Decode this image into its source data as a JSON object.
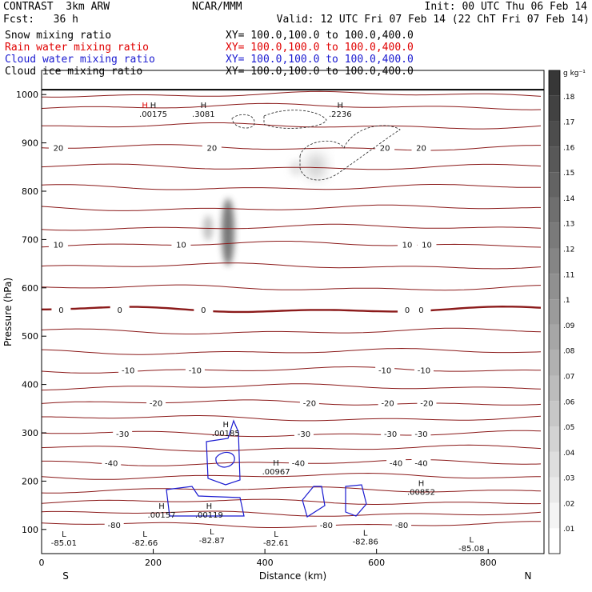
{
  "header": {
    "left_line1": "CONTRAST  3km ARW",
    "left_line2": "Fcst:   36 h",
    "center_line1": "NCAR/MMM",
    "right_line1": "Init: 00 UTC Thu 06 Feb 14",
    "right_line2": "Valid: 12 UTC Fri 07 Feb 14 (22 ChT Fri 07 Feb 14)"
  },
  "fields": [
    {
      "name": "Snow mixing ratio",
      "xy": "XY= 100.0,100.0 to 100.0,400.0",
      "color": "#000000"
    },
    {
      "name": "Rain water mixing ratio",
      "xy": "XY= 100.0,100.0 to 100.0,400.0",
      "color": "#e00000"
    },
    {
      "name": "Cloud water mixing ratio",
      "xy": "XY= 100.0,100.0 to 100.0,400.0",
      "color": "#1a1ad0"
    },
    {
      "name": "Cloud ice mixing ratio",
      "xy": "XY= 100.0,100.0 to 100.0,400.0",
      "color": "#000000"
    }
  ],
  "chart_data": {
    "type": "contour",
    "xlabel": "Distance (km)",
    "ylabel": "Pressure (hPa)",
    "xlim": [
      0,
      900
    ],
    "ylim": [
      1050,
      50
    ],
    "x_ticks": [
      0,
      200,
      400,
      600,
      800
    ],
    "y_ticks": [
      100,
      200,
      300,
      400,
      500,
      600,
      700,
      800,
      900,
      1000
    ],
    "x_end_labels": {
      "left": "S",
      "right": "N"
    },
    "colorbar": {
      "unit": "g kg⁻¹",
      "ticks": [
        ".01",
        ".02",
        ".03",
        ".04",
        ".05",
        ".06",
        ".07",
        ".08",
        ".09",
        ".1",
        ".11",
        ".12",
        ".13",
        ".14",
        ".15",
        ".16",
        ".17",
        ".18"
      ],
      "min": 0,
      "max": 0.19
    },
    "temperature_contours": [
      {
        "p": 1000,
        "labels": []
      },
      {
        "p": 975,
        "labels": []
      },
      {
        "p": 935,
        "labels": []
      },
      {
        "p": 890,
        "labels": [
          {
            "x": 30,
            "t": "20"
          },
          {
            "x": 305,
            "t": "20"
          },
          {
            "x": 615,
            "t": "20"
          },
          {
            "x": 680,
            "t": "20"
          }
        ]
      },
      {
        "p": 850,
        "labels": []
      },
      {
        "p": 808,
        "labels": []
      },
      {
        "p": 765,
        "labels": []
      },
      {
        "p": 725,
        "labels": []
      },
      {
        "p": 690,
        "labels": [
          {
            "x": 30,
            "t": "10"
          },
          {
            "x": 250,
            "t": "10"
          },
          {
            "x": 655,
            "t": "10"
          },
          {
            "x": 690,
            "t": "10"
          }
        ]
      },
      {
        "p": 645,
        "labels": []
      },
      {
        "p": 600,
        "labels": []
      },
      {
        "p": 555,
        "bold": true,
        "labels": [
          {
            "x": 35,
            "t": "0"
          },
          {
            "x": 140,
            "t": "0"
          },
          {
            "x": 290,
            "t": "0"
          },
          {
            "x": 655,
            "t": "0"
          },
          {
            "x": 680,
            "t": "0"
          }
        ]
      },
      {
        "p": 510,
        "labels": []
      },
      {
        "p": 468,
        "labels": []
      },
      {
        "p": 430,
        "labels": [
          {
            "x": 155,
            "t": "-10"
          },
          {
            "x": 275,
            "t": "-10"
          },
          {
            "x": 615,
            "t": "-10"
          },
          {
            "x": 685,
            "t": "-10"
          }
        ]
      },
      {
        "p": 395,
        "labels": []
      },
      {
        "p": 362,
        "labels": [
          {
            "x": 205,
            "t": "-20"
          },
          {
            "x": 480,
            "t": "-20"
          },
          {
            "x": 620,
            "t": "-20"
          },
          {
            "x": 690,
            "t": "-20"
          }
        ]
      },
      {
        "p": 330,
        "labels": []
      },
      {
        "p": 298,
        "labels": [
          {
            "x": 145,
            "t": "-30"
          },
          {
            "x": 470,
            "t": "-30"
          },
          {
            "x": 625,
            "t": "-30"
          },
          {
            "x": 680,
            "t": "-30"
          }
        ]
      },
      {
        "p": 268,
        "labels": []
      },
      {
        "p": 238,
        "labels": [
          {
            "x": 125,
            "t": "-40"
          },
          {
            "x": 460,
            "t": "-40"
          },
          {
            "x": 635,
            "t": "-40"
          },
          {
            "x": 680,
            "t": "-40"
          }
        ]
      },
      {
        "p": 210,
        "labels": []
      },
      {
        "p": 182,
        "labels": []
      },
      {
        "p": 157,
        "labels": []
      },
      {
        "p": 133,
        "labels": []
      },
      {
        "p": 110,
        "labels": [
          {
            "x": 130,
            "t": "-80"
          },
          {
            "x": 510,
            "t": "-80"
          },
          {
            "x": 645,
            "t": "-80"
          }
        ]
      }
    ],
    "extrema": [
      {
        "x": 40,
        "p": 85,
        "kind": "L",
        "value": "-85.01"
      },
      {
        "x": 185,
        "p": 85,
        "kind": "L",
        "value": "-82.66"
      },
      {
        "x": 305,
        "p": 90,
        "kind": "L",
        "value": "-82.87"
      },
      {
        "x": 420,
        "p": 85,
        "kind": "L",
        "value": "-82.61"
      },
      {
        "x": 580,
        "p": 87,
        "kind": "L",
        "value": "-82.86"
      },
      {
        "x": 770,
        "p": 73,
        "kind": "L",
        "value": "-85.08"
      },
      {
        "x": 215,
        "p": 143,
        "kind": "H",
        "value": ".00157"
      },
      {
        "x": 300,
        "p": 143,
        "kind": "H",
        "value": ".00119"
      },
      {
        "x": 680,
        "p": 190,
        "kind": "H",
        "value": ".00852"
      },
      {
        "x": 420,
        "p": 232,
        "kind": "H",
        "value": ".00967"
      },
      {
        "x": 330,
        "p": 312,
        "kind": "H",
        "value": ".00185"
      },
      {
        "x": 200,
        "p": 972,
        "kind": "H",
        "value": ".00175"
      },
      {
        "x": 185,
        "p": 972,
        "kind": "H",
        "value": "",
        "color": "#e00000"
      },
      {
        "x": 290,
        "p": 972,
        "kind": "H",
        "value": ".3081"
      },
      {
        "x": 535,
        "p": 972,
        "kind": "H",
        "value": ".2236"
      }
    ]
  }
}
